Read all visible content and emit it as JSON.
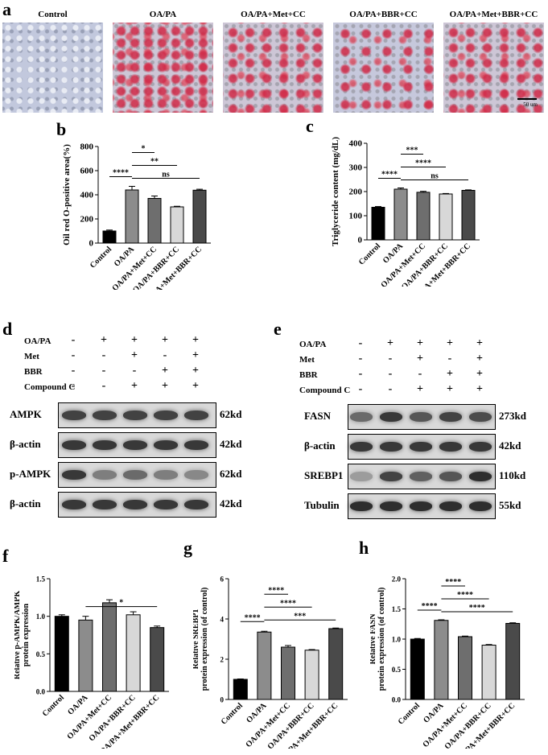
{
  "panel_labels": {
    "a": "a",
    "b": "b",
    "c": "c",
    "d": "d",
    "e": "e",
    "f": "f",
    "g": "g",
    "h": "h"
  },
  "micrographs": {
    "labels": [
      "Control",
      "OA/PA",
      "OA/PA+Met+CC",
      "OA/PA+BBR+CC",
      "OA/PA+Met+BBR+CC"
    ],
    "scale_bar": "50 um"
  },
  "groups": [
    "Control",
    "OA/PA",
    "OA/PA+Met+CC",
    "OA/PA+BBR+CC",
    "OA/PA+Met+BBR+CC"
  ],
  "bar_colors": [
    "#000000",
    "#8c8c8c",
    "#6e6e6e",
    "#d8d8d8",
    "#4a4a4a"
  ],
  "chart_data": [
    {
      "id": "b",
      "type": "bar",
      "ylabel": "Oil red O-positive area(%)",
      "ylim": [
        0,
        800
      ],
      "yticks": [
        0,
        200,
        400,
        600,
        800
      ],
      "categories": [
        "Control",
        "OA/PA",
        "OA/PA+Met+CC",
        "OA/PA+BBR+CC",
        "OA/PA+Met+BBR+CC"
      ],
      "values": [
        100,
        440,
        370,
        300,
        438
      ],
      "errors": [
        8,
        30,
        20,
        5,
        8
      ],
      "annotations": [
        {
          "from": 0,
          "to": 1,
          "label": "****"
        },
        {
          "from": 1,
          "to": 2,
          "label": "*"
        },
        {
          "from": 1,
          "to": 3,
          "label": "**"
        },
        {
          "from": 1,
          "to": 4,
          "label": "ns"
        }
      ]
    },
    {
      "id": "c",
      "type": "bar",
      "ylabel": "Triglyceride content (mg/dL)",
      "ylim": [
        0,
        400
      ],
      "yticks": [
        0,
        100,
        200,
        300,
        400
      ],
      "categories": [
        "Control",
        "OA/PA",
        "OA/PA+Met+CC",
        "OA/PA+BBR+CC",
        "OA/PA+Met+BBR+CC"
      ],
      "values": [
        135,
        210,
        197,
        190,
        205
      ],
      "errors": [
        3,
        5,
        4,
        2,
        2
      ],
      "annotations": [
        {
          "from": 0,
          "to": 1,
          "label": "****"
        },
        {
          "from": 1,
          "to": 2,
          "label": "***"
        },
        {
          "from": 1,
          "to": 3,
          "label": "****"
        },
        {
          "from": 1,
          "to": 4,
          "label": "ns"
        }
      ]
    },
    {
      "id": "f",
      "type": "bar",
      "ylabel": "Relative p-AMPK/AMPK protein expression",
      "ylim": [
        0,
        1.5
      ],
      "yticks": [
        0.0,
        0.5,
        1.0,
        1.5
      ],
      "decimals": 1,
      "categories": [
        "Control",
        "OA/PA",
        "OA/PA+Met+CC",
        "OA/PA+BBR+CC",
        "OA/PA+Met+BBR+CC"
      ],
      "values": [
        1.0,
        0.95,
        1.18,
        1.02,
        0.85
      ],
      "errors": [
        0.02,
        0.05,
        0.04,
        0.04,
        0.02
      ],
      "annotations": [
        {
          "from": 1,
          "to": 4,
          "label": "*"
        }
      ]
    },
    {
      "id": "g",
      "type": "bar",
      "ylabel": "Relative SREBP1 protein expression (of control)",
      "ylim": [
        0,
        6
      ],
      "yticks": [
        0,
        2,
        4,
        6
      ],
      "categories": [
        "Control",
        "OA/PA",
        "OA/PA+Met+CC",
        "OA/PA+BBR+CC",
        "OA/PA+Met+BBR+CC"
      ],
      "values": [
        1.0,
        3.35,
        2.6,
        2.45,
        3.52
      ],
      "errors": [
        0.02,
        0.04,
        0.08,
        0.03,
        0.03
      ],
      "annotations": [
        {
          "from": 0,
          "to": 1,
          "label": "****"
        },
        {
          "from": 1,
          "to": 2,
          "label": "****"
        },
        {
          "from": 1,
          "to": 3,
          "label": "****"
        },
        {
          "from": 1,
          "to": 4,
          "label": "***"
        }
      ]
    },
    {
      "id": "h",
      "type": "bar",
      "ylabel": "Relative FASN protein expression (of control)",
      "ylim": [
        0,
        2.0
      ],
      "yticks": [
        0.0,
        0.5,
        1.0,
        1.5,
        2.0
      ],
      "decimals": 1,
      "categories": [
        "Control",
        "OA/PA",
        "OA/PA+Met+CC",
        "OA/PA+BBR+CC",
        "OA/PA+Met+BBR+CC"
      ],
      "values": [
        1.0,
        1.31,
        1.04,
        0.9,
        1.26
      ],
      "errors": [
        0.01,
        0.01,
        0.01,
        0.01,
        0.01
      ],
      "annotations": [
        {
          "from": 0,
          "to": 1,
          "label": "****"
        },
        {
          "from": 1,
          "to": 2,
          "label": "****"
        },
        {
          "from": 1,
          "to": 3,
          "label": "****"
        },
        {
          "from": 1,
          "to": 4,
          "label": "****"
        }
      ]
    }
  ],
  "western_d": {
    "treatments": [
      {
        "label": "OA/PA",
        "signs": [
          "-",
          "+",
          "+",
          "+",
          "+"
        ]
      },
      {
        "label": "Met",
        "signs": [
          "-",
          "-",
          "+",
          "-",
          "+"
        ]
      },
      {
        "label": "BBR",
        "signs": [
          "-",
          "-",
          "-",
          "+",
          "+"
        ]
      },
      {
        "label": "Compound C",
        "signs": [
          "-",
          "-",
          "+",
          "+",
          "+"
        ]
      }
    ],
    "blots": [
      {
        "name": "AMPK",
        "size": "62kd",
        "intensity": [
          0.75,
          0.75,
          0.75,
          0.75,
          0.75
        ]
      },
      {
        "name": "β-actin",
        "size": "42kd",
        "intensity": [
          0.8,
          0.8,
          0.8,
          0.8,
          0.8
        ]
      },
      {
        "name": "p-AMPK",
        "size": "62kd",
        "intensity": [
          0.8,
          0.45,
          0.55,
          0.45,
          0.4
        ]
      },
      {
        "name": "β-actin",
        "size": "42kd",
        "intensity": [
          0.8,
          0.8,
          0.8,
          0.8,
          0.8
        ]
      }
    ]
  },
  "western_e": {
    "treatments": [
      {
        "label": "OA/PA",
        "signs": [
          "-",
          "+",
          "+",
          "+",
          "+"
        ]
      },
      {
        "label": "Met",
        "signs": [
          "-",
          "-",
          "+",
          "-",
          "+"
        ]
      },
      {
        "label": "BBR",
        "signs": [
          "-",
          "-",
          "-",
          "+",
          "+"
        ]
      },
      {
        "label": "Compound C",
        "signs": [
          "-",
          "-",
          "+",
          "+",
          "+"
        ]
      }
    ],
    "blots": [
      {
        "name": "FASN",
        "size": "273kd",
        "intensity": [
          0.55,
          0.8,
          0.65,
          0.75,
          0.7
        ]
      },
      {
        "name": "β-actin",
        "size": "42kd",
        "intensity": [
          0.8,
          0.8,
          0.8,
          0.8,
          0.8
        ]
      },
      {
        "name": "SREBP1",
        "size": "110kd",
        "intensity": [
          0.3,
          0.75,
          0.6,
          0.65,
          0.85
        ]
      },
      {
        "name": "Tubulin",
        "size": "55kd",
        "intensity": [
          0.85,
          0.85,
          0.85,
          0.85,
          0.85
        ]
      }
    ]
  }
}
